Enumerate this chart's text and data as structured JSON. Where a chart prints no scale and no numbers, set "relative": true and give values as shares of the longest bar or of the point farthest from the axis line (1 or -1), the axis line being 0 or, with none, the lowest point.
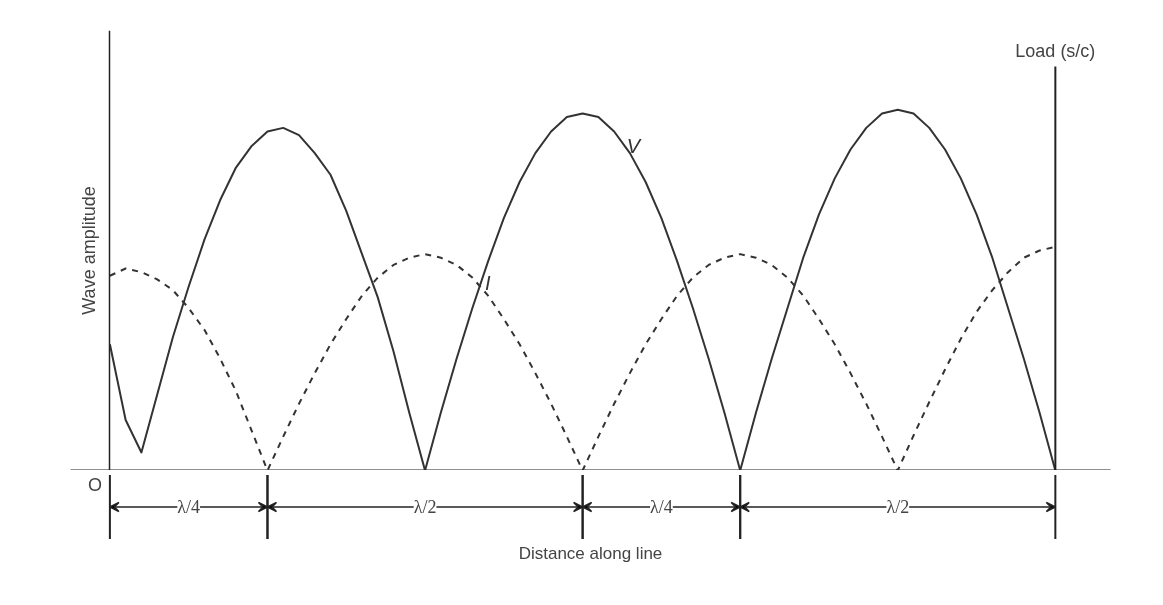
{
  "chart_data": {
    "type": "line",
    "relative": true,
    "xlabel": "Distance along line",
    "ylabel": "Wave amplitude",
    "categories": [
      null,
      null,
      null,
      null,
      null,
      null,
      null,
      null,
      null,
      null,
      null,
      null,
      null,
      null,
      null,
      null,
      null,
      null,
      null,
      null,
      null,
      null,
      null,
      null,
      null,
      null,
      null,
      null,
      null,
      null,
      null,
      null,
      null,
      null,
      null,
      null,
      null,
      null,
      null,
      null,
      null,
      null,
      null,
      null,
      null,
      null,
      null,
      null,
      null,
      null,
      null,
      null,
      null,
      null,
      null,
      null,
      null,
      null,
      null,
      null,
      null
    ],
    "annotations": [
      "O",
      "λ/4",
      "λ/2",
      "λ/4",
      "λ/2",
      "Load (s/c)"
    ],
    "grid": false,
    "marker": "none",
    "series": [
      {
        "name": "V",
        "color": "#333333",
        "line_style": "solid",
        "values": [
          0.35,
          0.14,
          0.05,
          0.21,
          0.37,
          0.51,
          0.64,
          0.75,
          0.84,
          0.9,
          0.94,
          0.95,
          0.93,
          0.88,
          0.82,
          0.72,
          0.6,
          0.48,
          0.33,
          0.16,
          0,
          0.16,
          0.31,
          0.45,
          0.58,
          0.7,
          0.8,
          0.88,
          0.94,
          0.98,
          0.99,
          0.98,
          0.94,
          0.88,
          0.8,
          0.7,
          0.58,
          0.45,
          0.31,
          0.16,
          0,
          0.16,
          0.31,
          0.45,
          0.59,
          0.71,
          0.81,
          0.89,
          0.95,
          0.99,
          1.0,
          0.99,
          0.95,
          0.89,
          0.81,
          0.71,
          0.59,
          0.45,
          0.31,
          0.16,
          0
        ]
      },
      {
        "name": "I",
        "color": "#333333",
        "line_style": "dashed",
        "values": [
          0.54,
          0.56,
          0.55,
          0.53,
          0.5,
          0.45,
          0.39,
          0.31,
          0.22,
          0.11,
          0,
          0.094,
          0.185,
          0.27,
          0.35,
          0.42,
          0.485,
          0.535,
          0.57,
          0.59,
          0.6,
          0.59,
          0.57,
          0.535,
          0.485,
          0.42,
          0.35,
          0.27,
          0.185,
          0.094,
          0,
          0.094,
          0.185,
          0.27,
          0.35,
          0.42,
          0.485,
          0.535,
          0.57,
          0.59,
          0.6,
          0.59,
          0.57,
          0.535,
          0.485,
          0.42,
          0.35,
          0.27,
          0.185,
          0.094,
          0,
          0.097,
          0.19,
          0.28,
          0.365,
          0.44,
          0.5,
          0.55,
          0.59,
          0.61,
          0.62
        ]
      }
    ]
  }
}
